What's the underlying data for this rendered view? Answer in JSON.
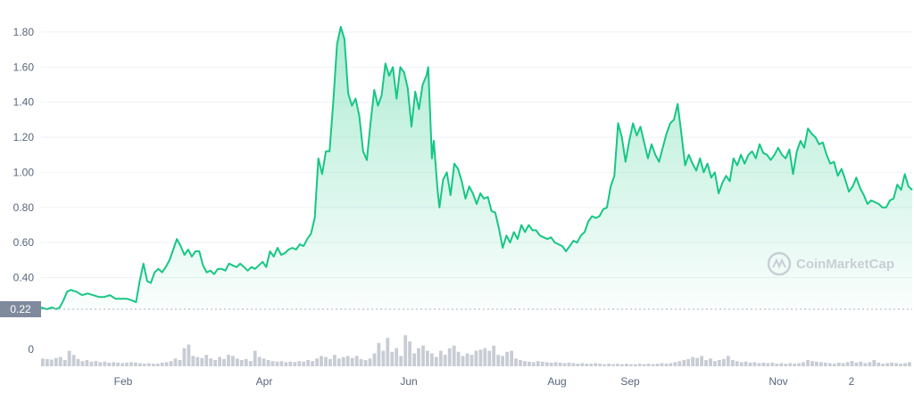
{
  "chart_data": {
    "type": "line",
    "title": "",
    "xlabel": "",
    "ylabel": "",
    "ylim": [
      0.22,
      1.9
    ],
    "yticks": [
      "0.40",
      "0.60",
      "0.80",
      "1.00",
      "1.20",
      "1.40",
      "1.60",
      "1.80"
    ],
    "xticks": [
      "Feb",
      "Apr",
      "Jun",
      "Aug",
      "Sep",
      "Nov",
      "2"
    ],
    "grid": true,
    "legend": "none",
    "current_price_label": "0.22",
    "volume_axis_label": "0",
    "watermark": "CoinMarketCap",
    "colors": {
      "line": "#16c784",
      "fill": "#16c784",
      "volume": "#c8ccd4",
      "badge": "#808a9d"
    },
    "series": [
      {
        "points": [
          [
            0,
            0.23
          ],
          [
            3,
            0.22
          ],
          [
            6,
            0.23
          ],
          [
            8,
            0.22
          ],
          [
            10,
            0.23
          ],
          [
            12,
            0.27
          ],
          [
            14,
            0.32
          ],
          [
            16,
            0.33
          ],
          [
            19,
            0.32
          ],
          [
            22,
            0.3
          ],
          [
            25,
            0.31
          ],
          [
            28,
            0.3
          ],
          [
            31,
            0.29
          ],
          [
            34,
            0.29
          ],
          [
            37,
            0.3
          ],
          [
            40,
            0.28
          ],
          [
            43,
            0.28
          ],
          [
            46,
            0.28
          ],
          [
            49,
            0.27
          ],
          [
            51,
            0.26
          ],
          [
            53,
            0.38
          ],
          [
            55,
            0.48
          ],
          [
            57,
            0.38
          ],
          [
            59,
            0.37
          ],
          [
            61,
            0.43
          ],
          [
            63,
            0.45
          ],
          [
            65,
            0.43
          ],
          [
            67,
            0.46
          ],
          [
            69,
            0.5
          ],
          [
            71,
            0.56
          ],
          [
            73,
            0.62
          ],
          [
            75,
            0.58
          ],
          [
            77,
            0.53
          ],
          [
            79,
            0.56
          ],
          [
            81,
            0.52
          ],
          [
            83,
            0.55
          ],
          [
            85,
            0.55
          ],
          [
            87,
            0.47
          ],
          [
            89,
            0.43
          ],
          [
            91,
            0.44
          ],
          [
            93,
            0.42
          ],
          [
            95,
            0.45
          ],
          [
            97,
            0.45
          ],
          [
            99,
            0.44
          ],
          [
            101,
            0.48
          ],
          [
            103,
            0.47
          ],
          [
            105,
            0.46
          ],
          [
            107,
            0.48
          ],
          [
            109,
            0.46
          ],
          [
            111,
            0.44
          ],
          [
            113,
            0.46
          ],
          [
            115,
            0.45
          ],
          [
            117,
            0.47
          ],
          [
            119,
            0.49
          ],
          [
            121,
            0.46
          ],
          [
            123,
            0.55
          ],
          [
            125,
            0.52
          ],
          [
            127,
            0.57
          ],
          [
            129,
            0.53
          ],
          [
            131,
            0.54
          ],
          [
            133,
            0.56
          ],
          [
            135,
            0.57
          ],
          [
            137,
            0.56
          ],
          [
            139,
            0.59
          ],
          [
            141,
            0.58
          ],
          [
            143,
            0.62
          ],
          [
            145,
            0.65
          ],
          [
            147,
            0.74
          ],
          [
            149,
            1.08
          ],
          [
            151,
            0.99
          ],
          [
            153,
            1.12
          ],
          [
            155,
            1.12
          ],
          [
            157,
            1.4
          ],
          [
            159,
            1.73
          ],
          [
            161,
            1.83
          ],
          [
            163,
            1.76
          ],
          [
            165,
            1.45
          ],
          [
            167,
            1.38
          ],
          [
            169,
            1.42
          ],
          [
            171,
            1.32
          ],
          [
            173,
            1.12
          ],
          [
            175,
            1.07
          ],
          [
            177,
            1.28
          ],
          [
            179,
            1.47
          ],
          [
            181,
            1.38
          ],
          [
            183,
            1.44
          ],
          [
            185,
            1.62
          ],
          [
            187,
            1.55
          ],
          [
            189,
            1.6
          ],
          [
            191,
            1.42
          ],
          [
            193,
            1.6
          ],
          [
            195,
            1.57
          ],
          [
            197,
            1.48
          ],
          [
            199,
            1.26
          ],
          [
            201,
            1.46
          ],
          [
            203,
            1.36
          ],
          [
            205,
            1.5
          ],
          [
            207,
            1.55
          ],
          [
            208,
            1.6
          ],
          [
            210,
            1.08
          ],
          [
            211,
            1.18
          ],
          [
            213,
            0.9
          ],
          [
            214,
            0.8
          ],
          [
            216,
            0.96
          ],
          [
            218,
            1.0
          ],
          [
            220,
            0.87
          ],
          [
            222,
            1.05
          ],
          [
            224,
            1.02
          ],
          [
            226,
            0.95
          ],
          [
            228,
            0.85
          ],
          [
            230,
            0.92
          ],
          [
            232,
            0.88
          ],
          [
            234,
            0.82
          ],
          [
            236,
            0.88
          ],
          [
            238,
            0.85
          ],
          [
            240,
            0.86
          ],
          [
            242,
            0.78
          ],
          [
            244,
            0.77
          ],
          [
            246,
            0.68
          ],
          [
            248,
            0.57
          ],
          [
            250,
            0.64
          ],
          [
            252,
            0.6
          ],
          [
            254,
            0.66
          ],
          [
            256,
            0.62
          ],
          [
            258,
            0.7
          ],
          [
            260,
            0.66
          ],
          [
            262,
            0.7
          ],
          [
            264,
            0.67
          ],
          [
            266,
            0.67
          ],
          [
            268,
            0.64
          ],
          [
            270,
            0.63
          ],
          [
            272,
            0.62
          ],
          [
            274,
            0.63
          ],
          [
            276,
            0.6
          ],
          [
            278,
            0.59
          ],
          [
            280,
            0.58
          ],
          [
            282,
            0.55
          ],
          [
            284,
            0.58
          ],
          [
            286,
            0.61
          ],
          [
            288,
            0.6
          ],
          [
            290,
            0.64
          ],
          [
            292,
            0.66
          ],
          [
            294,
            0.72
          ],
          [
            296,
            0.75
          ],
          [
            298,
            0.74
          ],
          [
            300,
            0.75
          ],
          [
            302,
            0.79
          ],
          [
            304,
            0.8
          ],
          [
            306,
            0.92
          ],
          [
            308,
            0.98
          ],
          [
            310,
            1.28
          ],
          [
            312,
            1.2
          ],
          [
            314,
            1.06
          ],
          [
            316,
            1.18
          ],
          [
            318,
            1.28
          ],
          [
            320,
            1.21
          ],
          [
            322,
            1.26
          ],
          [
            324,
            1.17
          ],
          [
            326,
            1.08
          ],
          [
            328,
            1.16
          ],
          [
            330,
            1.1
          ],
          [
            332,
            1.06
          ],
          [
            334,
            1.14
          ],
          [
            336,
            1.22
          ],
          [
            338,
            1.28
          ],
          [
            340,
            1.3
          ],
          [
            342,
            1.39
          ],
          [
            344,
            1.22
          ],
          [
            346,
            1.04
          ],
          [
            348,
            1.1
          ],
          [
            350,
            1.05
          ],
          [
            352,
            1.01
          ],
          [
            354,
            1.08
          ],
          [
            356,
            1.0
          ],
          [
            358,
            1.05
          ],
          [
            360,
            0.97
          ],
          [
            362,
            1.0
          ],
          [
            364,
            0.88
          ],
          [
            366,
            0.94
          ],
          [
            368,
            0.98
          ],
          [
            370,
            0.95
          ],
          [
            372,
            1.08
          ],
          [
            374,
            1.04
          ],
          [
            376,
            1.1
          ],
          [
            378,
            1.05
          ],
          [
            380,
            1.1
          ],
          [
            382,
            1.12
          ],
          [
            384,
            1.08
          ],
          [
            386,
            1.16
          ],
          [
            388,
            1.11
          ],
          [
            390,
            1.1
          ],
          [
            392,
            1.07
          ],
          [
            394,
            1.1
          ],
          [
            396,
            1.14
          ],
          [
            398,
            1.1
          ],
          [
            400,
            1.08
          ],
          [
            402,
            1.13
          ],
          [
            404,
            0.99
          ],
          [
            406,
            1.12
          ],
          [
            408,
            1.18
          ],
          [
            410,
            1.14
          ],
          [
            412,
            1.25
          ],
          [
            414,
            1.22
          ],
          [
            416,
            1.2
          ],
          [
            418,
            1.16
          ],
          [
            420,
            1.17
          ],
          [
            422,
            1.1
          ],
          [
            424,
            1.05
          ],
          [
            426,
            1.06
          ],
          [
            428,
            0.98
          ],
          [
            430,
            1.02
          ],
          [
            432,
            0.96
          ],
          [
            434,
            0.89
          ],
          [
            436,
            0.92
          ],
          [
            438,
            0.97
          ],
          [
            440,
            0.91
          ],
          [
            442,
            0.87
          ],
          [
            444,
            0.82
          ],
          [
            446,
            0.84
          ],
          [
            448,
            0.83
          ],
          [
            450,
            0.82
          ],
          [
            452,
            0.8
          ],
          [
            454,
            0.8
          ],
          [
            456,
            0.84
          ],
          [
            458,
            0.85
          ],
          [
            460,
            0.93
          ],
          [
            462,
            0.9
          ],
          [
            464,
            0.99
          ],
          [
            466,
            0.92
          ],
          [
            468,
            0.9
          ]
        ]
      }
    ],
    "volume": [
      0.15,
      0.14,
      0.13,
      0.16,
      0.18,
      0.12,
      0.3,
      0.22,
      0.14,
      0.1,
      0.12,
      0.09,
      0.1,
      0.08,
      0.09,
      0.07,
      0.08,
      0.07,
      0.06,
      0.07,
      0.08,
      0.07,
      0.06,
      0.05,
      0.06,
      0.05,
      0.05,
      0.07,
      0.08,
      0.1,
      0.15,
      0.12,
      0.35,
      0.42,
      0.2,
      0.18,
      0.16,
      0.22,
      0.15,
      0.12,
      0.18,
      0.14,
      0.22,
      0.2,
      0.15,
      0.12,
      0.14,
      0.1,
      0.3,
      0.18,
      0.15,
      0.12,
      0.1,
      0.09,
      0.1,
      0.08,
      0.09,
      0.08,
      0.1,
      0.09,
      0.12,
      0.1,
      0.15,
      0.2,
      0.18,
      0.14,
      0.22,
      0.15,
      0.18,
      0.2,
      0.16,
      0.2,
      0.14,
      0.12,
      0.15,
      0.25,
      0.45,
      0.3,
      0.55,
      0.28,
      0.35,
      0.2,
      0.6,
      0.48,
      0.25,
      0.35,
      0.4,
      0.3,
      0.25,
      0.18,
      0.3,
      0.22,
      0.35,
      0.4,
      0.28,
      0.2,
      0.25,
      0.22,
      0.3,
      0.32,
      0.35,
      0.3,
      0.4,
      0.22,
      0.2,
      0.28,
      0.3,
      0.15,
      0.12,
      0.1,
      0.09,
      0.08,
      0.1,
      0.09,
      0.08,
      0.07,
      0.08,
      0.07,
      0.06,
      0.07,
      0.06,
      0.05,
      0.06,
      0.05,
      0.05,
      0.06,
      0.05,
      0.04,
      0.05,
      0.04,
      0.05,
      0.04,
      0.05,
      0.04,
      0.04,
      0.05,
      0.04,
      0.05,
      0.04,
      0.05,
      0.06,
      0.05,
      0.06,
      0.08,
      0.1,
      0.12,
      0.14,
      0.18,
      0.16,
      0.2,
      0.12,
      0.15,
      0.1,
      0.12,
      0.14,
      0.2,
      0.12,
      0.1,
      0.08,
      0.09,
      0.07,
      0.08,
      0.06,
      0.07,
      0.06,
      0.07,
      0.05,
      0.06,
      0.05,
      0.06,
      0.05,
      0.06,
      0.08,
      0.12,
      0.1,
      0.09,
      0.08,
      0.07,
      0.06,
      0.05,
      0.07,
      0.06,
      0.08,
      0.1,
      0.07,
      0.09,
      0.06,
      0.08,
      0.12,
      0.07,
      0.05,
      0.06,
      0.07,
      0.06,
      0.05,
      0.06,
      0.08
    ]
  }
}
